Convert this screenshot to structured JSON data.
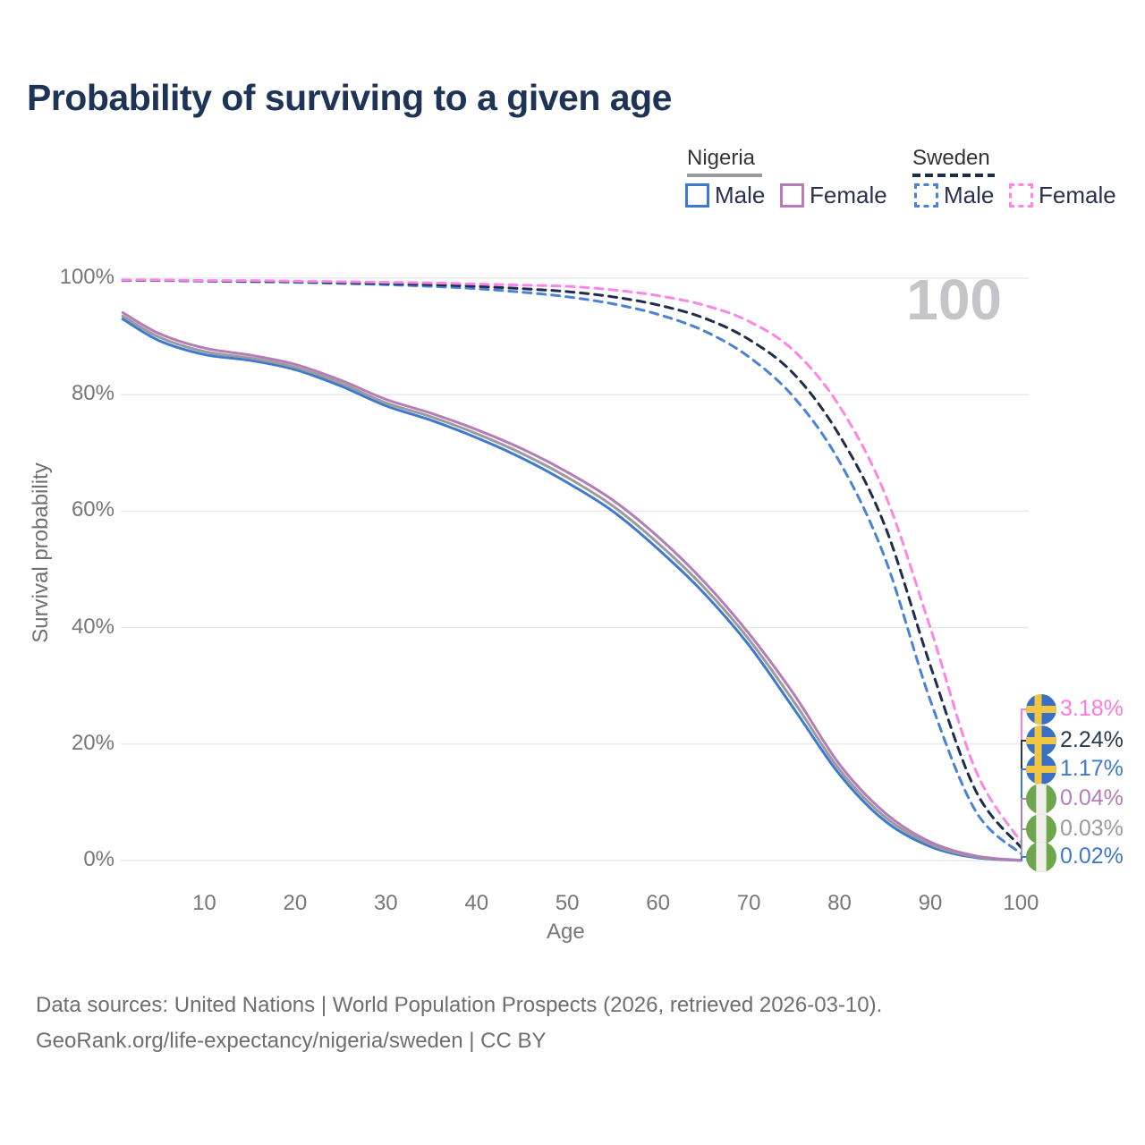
{
  "title": "Probability of surviving to a given age",
  "watermark": "100",
  "legend": {
    "nigeria": {
      "header": "Nigeria",
      "male_label": "Male",
      "female_label": "Female"
    },
    "sweden": {
      "header": "Sweden",
      "male_label": "Male",
      "female_label": "Female"
    }
  },
  "axes": {
    "x_title": "Age",
    "y_title": "Survival probability"
  },
  "footer": {
    "line1": "Data sources: United Nations | World Population Prospects (2026, retrieved 2026-03-10).",
    "line2": "GeoRank.org/life-expectancy/nigeria/sweden | CC BY"
  },
  "colors": {
    "title": "#1d3456",
    "gridline": "#e8e8ea",
    "tick_text": "#76767b",
    "nigeria_male": "#3d79cc",
    "nigeria_female": "#b57db5",
    "nigeria_both": "#9a9aa0",
    "sweden_male": "#4a82d6",
    "sweden_female": "#fc85e6",
    "sweden_both": "#1e2c4d",
    "flag_sweden_blue": "#3a6fc4",
    "flag_sweden_yellow": "#f2c640",
    "flag_nigeria_green": "#6fa54d",
    "flag_nigeria_white": "#efefec"
  },
  "end_labels": [
    {
      "value": "3.18%",
      "color": "#fc7ae2",
      "flag": "sweden",
      "series": "Sweden Female"
    },
    {
      "value": "2.24%",
      "color": "#2b3a52",
      "flag": "sweden",
      "series": "Sweden Both"
    },
    {
      "value": "1.17%",
      "color": "#3d79cc",
      "flag": "sweden",
      "series": "Sweden Male"
    },
    {
      "value": "0.04%",
      "color": "#b57db5",
      "flag": "nigeria",
      "series": "Nigeria Female"
    },
    {
      "value": "0.03%",
      "color": "#9a9aa0",
      "flag": "nigeria",
      "series": "Nigeria Both"
    },
    {
      "value": "0.02%",
      "color": "#3d79cc",
      "flag": "nigeria",
      "series": "Nigeria Male"
    }
  ],
  "chart_data": {
    "type": "line",
    "title": "Probability of surviving to a given age",
    "xlabel": "Age",
    "ylabel": "Survival probability",
    "xlim": [
      1,
      100
    ],
    "ylim": [
      0,
      100
    ],
    "x_ticks": [
      10,
      20,
      30,
      40,
      50,
      60,
      70,
      80,
      90,
      100
    ],
    "y_ticks": [
      "0%",
      "20%",
      "40%",
      "60%",
      "80%",
      "100%"
    ],
    "grid": "horizontal",
    "legend_position": "top-right",
    "x": [
      1,
      5,
      10,
      15,
      20,
      25,
      30,
      35,
      40,
      45,
      50,
      55,
      60,
      65,
      70,
      75,
      80,
      85,
      90,
      95,
      100
    ],
    "series": [
      {
        "name": "Sweden Male",
        "country": "Sweden",
        "sex": "male",
        "style": "dashed",
        "color": "#4a82d6",
        "values": [
          99.6,
          99.6,
          99.5,
          99.4,
          99.3,
          99.1,
          98.9,
          98.6,
          98.2,
          97.6,
          96.8,
          95.6,
          93.8,
          91.0,
          86.5,
          79.5,
          68.5,
          52.0,
          27.5,
          8.5,
          1.17
        ]
      },
      {
        "name": "Sweden Both",
        "country": "Sweden",
        "sex": "both",
        "style": "dashed",
        "color": "#1e2c4d",
        "values": [
          99.65,
          99.65,
          99.55,
          99.5,
          99.4,
          99.25,
          99.1,
          98.9,
          98.6,
          98.2,
          97.7,
          96.8,
          95.4,
          93.2,
          89.5,
          83.5,
          73.0,
          57.5,
          33.5,
          12.0,
          2.24
        ]
      },
      {
        "name": "Sweden Female",
        "country": "Sweden",
        "sex": "female",
        "style": "dashed",
        "color": "#fc85e6",
        "values": [
          99.7,
          99.7,
          99.6,
          99.6,
          99.5,
          99.4,
          99.3,
          99.2,
          99.0,
          98.8,
          98.6,
          98.0,
          97.0,
          95.4,
          92.6,
          87.5,
          78.0,
          63.0,
          40.0,
          15.5,
          3.18
        ]
      },
      {
        "name": "Nigeria Male",
        "country": "Nigeria",
        "sex": "male",
        "style": "solid",
        "color": "#3d79cc",
        "values": [
          93.0,
          89.3,
          86.9,
          85.9,
          84.3,
          81.5,
          78.1,
          75.6,
          72.6,
          69.1,
          64.9,
          60.0,
          53.5,
          46.0,
          37.0,
          26.0,
          14.8,
          6.8,
          2.4,
          0.5,
          0.02
        ]
      },
      {
        "name": "Nigeria Both",
        "country": "Nigeria",
        "sex": "both",
        "style": "solid",
        "color": "#9a9aa0",
        "values": [
          93.5,
          89.9,
          87.4,
          86.3,
          84.7,
          82.0,
          78.6,
          76.2,
          73.3,
          69.9,
          65.8,
          60.9,
          54.5,
          47.0,
          38.0,
          27.2,
          15.6,
          7.5,
          2.8,
          0.65,
          0.03
        ]
      },
      {
        "name": "Nigeria Female",
        "country": "Nigeria",
        "sex": "female",
        "style": "solid",
        "color": "#b57db5",
        "values": [
          94.1,
          90.5,
          88.0,
          86.8,
          85.2,
          82.5,
          79.2,
          76.8,
          74.0,
          70.7,
          66.7,
          61.9,
          55.6,
          48.0,
          39.0,
          28.5,
          16.5,
          8.2,
          3.2,
          0.8,
          0.04
        ]
      }
    ]
  }
}
